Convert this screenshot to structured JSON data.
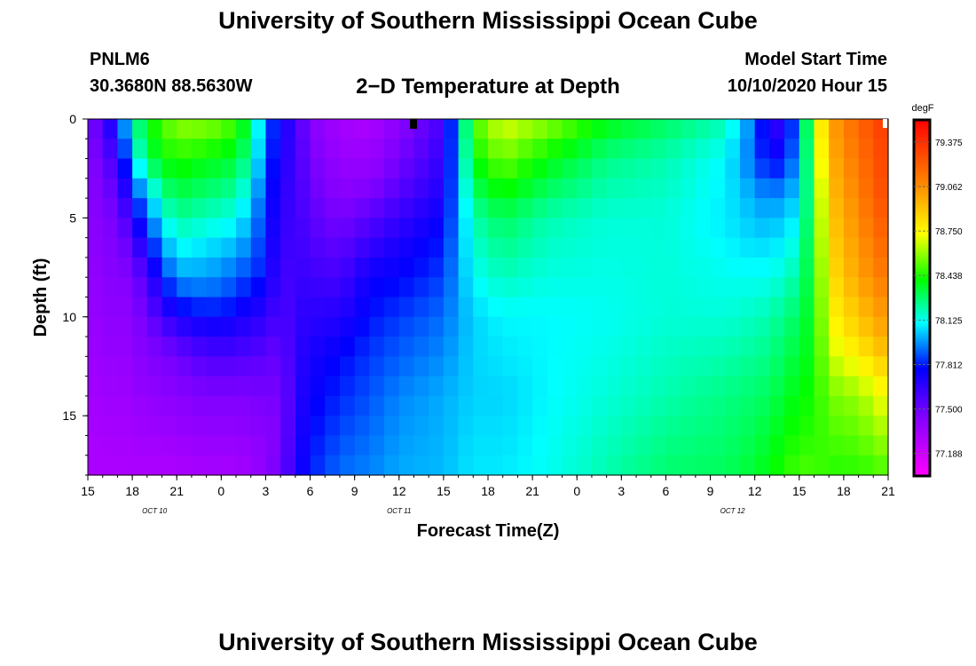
{
  "header": {
    "title": "University of Southern Mississippi Ocean Cube",
    "station": "PNLM6",
    "coords": "30.3680N 88.5630W",
    "subtitle": "2−D Temperature at Depth",
    "model_start_label": "Model Start Time",
    "model_start_value": "10/10/2020 Hour 15"
  },
  "footer": {
    "title": "University of Southern Mississippi Ocean Cube"
  },
  "chart_data": {
    "type": "heatmap",
    "xlabel": "Forecast Time(Z)",
    "ylabel": "Depth (ft)",
    "x_tick_labels": [
      "15",
      "18",
      "21",
      "0",
      "3",
      "6",
      "9",
      "12",
      "15",
      "18",
      "21",
      "0",
      "3",
      "6",
      "9",
      "12",
      "15",
      "18",
      "21"
    ],
    "x_range_hours": [
      0,
      54
    ],
    "day_labels": [
      {
        "text": "OCT  10",
        "hour": 4.5
      },
      {
        "text": "OCT  11",
        "hour": 21
      },
      {
        "text": "OCT  12",
        "hour": 43.5
      }
    ],
    "y_tick_labels": [
      "0",
      "5",
      "10",
      "15"
    ],
    "y_range": [
      0,
      18
    ],
    "y_reversed": true,
    "colorbar": {
      "unit": "degF",
      "min": 77.03,
      "max": 79.53,
      "tick_labels": [
        "79.375",
        "79.062",
        "78.750",
        "78.438",
        "78.125",
        "77.812",
        "77.500",
        "77.188"
      ],
      "tick_values": [
        79.375,
        79.062,
        78.75,
        78.438,
        78.125,
        77.812,
        77.5,
        77.188
      ]
    },
    "grid": {
      "x_step_hours": 1,
      "depths_ft": [
        0.5,
        1.5,
        2.5,
        3.5,
        4.5,
        5.5,
        6.5,
        7.5,
        8.5,
        9.5,
        10.5,
        11.5,
        12.5,
        13.5,
        14.5,
        15.5,
        16.5,
        17.5
      ]
    },
    "profiles": [
      {
        "hour": 0,
        "depth_ft": [
          0,
          18
        ],
        "temp": [
          77.4,
          77.3
        ]
      },
      {
        "hour": 1,
        "depth_ft": [
          0,
          3,
          18
        ],
        "temp": [
          77.62,
          77.5,
          77.3
        ]
      },
      {
        "hour": 2,
        "depth_ft": [
          0,
          1,
          3,
          5,
          18
        ],
        "temp": [
          77.8,
          77.7,
          77.55,
          77.45,
          77.3
        ]
      },
      {
        "hour": 3,
        "depth_ft": [
          0,
          2,
          4,
          6,
          8,
          18
        ],
        "temp": [
          78.2,
          78.05,
          77.8,
          77.6,
          77.45,
          77.3
        ]
      },
      {
        "hour": 4,
        "depth_ft": [
          0,
          2,
          4,
          6,
          8,
          10,
          18
        ],
        "temp": [
          78.4,
          78.3,
          78.0,
          77.8,
          77.6,
          77.5,
          77.3
        ]
      },
      {
        "hour": 5,
        "depth_ft": [
          0,
          2,
          4,
          6,
          8,
          10,
          11,
          13,
          18
        ],
        "temp": [
          78.5,
          78.4,
          78.2,
          78.0,
          77.8,
          77.62,
          77.5,
          77.42,
          77.3
        ]
      },
      {
        "hour": 6,
        "depth_ft": [
          0,
          2,
          4,
          6,
          8,
          9,
          10,
          11,
          12,
          14,
          18
        ],
        "temp": [
          78.6,
          78.45,
          78.3,
          78.15,
          77.98,
          77.85,
          77.72,
          77.6,
          77.5,
          77.42,
          77.3
        ]
      },
      {
        "hour": 8,
        "depth_ft": [
          0,
          2,
          4,
          6,
          8,
          9,
          10,
          11,
          12,
          14,
          18
        ],
        "temp": [
          78.6,
          78.4,
          78.25,
          78.1,
          77.98,
          77.9,
          77.78,
          77.68,
          77.58,
          77.45,
          77.32
        ]
      },
      {
        "hour": 10,
        "depth_ft": [
          0,
          2,
          4,
          6,
          8,
          9,
          10,
          11,
          12,
          14,
          18
        ],
        "temp": [
          78.5,
          78.35,
          78.2,
          78.05,
          77.9,
          77.85,
          77.75,
          77.68,
          77.58,
          77.45,
          77.32
        ]
      },
      {
        "hour": 11,
        "depth_ft": [
          0,
          2,
          4,
          6,
          8,
          9,
          10,
          11,
          12,
          14,
          18
        ],
        "temp": [
          78.3,
          78.2,
          78.05,
          77.95,
          77.85,
          77.75,
          77.68,
          77.62,
          77.55,
          77.45,
          77.35
        ]
      },
      {
        "hour": 12,
        "depth_ft": [
          0,
          2,
          4,
          6,
          8,
          10,
          11,
          12,
          14,
          16,
          18
        ],
        "temp": [
          77.92,
          77.9,
          77.85,
          77.82,
          77.8,
          77.68,
          77.62,
          77.55,
          77.48,
          77.42,
          77.4
        ]
      },
      {
        "hour": 13,
        "depth_ft": [
          0,
          2,
          4,
          6,
          8,
          10,
          12,
          14,
          16,
          18
        ],
        "temp": [
          77.75,
          77.7,
          77.65,
          77.62,
          77.58,
          77.55,
          77.5,
          77.45,
          77.45,
          77.5
        ]
      },
      {
        "hour": 14,
        "depth_ft": [
          0,
          18
        ],
        "temp": [
          77.62,
          77.68
        ]
      },
      {
        "hour": 15,
        "depth_ft": [
          0,
          4,
          8,
          12,
          18
        ],
        "temp": [
          77.42,
          77.52,
          77.62,
          77.72,
          77.82
        ]
      },
      {
        "hour": 17,
        "depth_ft": [
          0,
          4,
          8,
          12,
          18
        ],
        "temp": [
          77.32,
          77.42,
          77.6,
          77.78,
          77.92
        ]
      },
      {
        "hour": 19,
        "depth_ft": [
          0,
          3,
          6,
          8,
          12,
          18
        ],
        "temp": [
          77.3,
          77.4,
          77.62,
          77.75,
          77.85,
          77.95
        ]
      },
      {
        "hour": 21,
        "depth_ft": [
          0,
          3,
          6,
          10,
          14,
          18
        ],
        "temp": [
          77.4,
          77.52,
          77.7,
          77.85,
          77.95,
          78.0
        ]
      },
      {
        "hour": 24,
        "depth_ft": [
          0,
          3,
          6,
          10,
          14,
          18
        ],
        "temp": [
          77.6,
          77.68,
          77.8,
          77.92,
          78.0,
          78.02
        ]
      },
      {
        "hour": 26,
        "depth_ft": [
          0,
          2,
          5,
          10,
          14,
          18
        ],
        "temp": [
          78.5,
          78.4,
          78.2,
          78.05,
          78.05,
          78.08
        ]
      },
      {
        "hour": 28,
        "depth_ft": [
          0,
          2,
          5,
          10,
          14,
          18
        ],
        "temp": [
          78.7,
          78.55,
          78.3,
          78.1,
          78.05,
          78.08
        ]
      },
      {
        "hour": 31,
        "depth_ft": [
          0,
          2,
          5,
          10,
          14,
          18
        ],
        "temp": [
          78.6,
          78.4,
          78.2,
          78.1,
          78.1,
          78.12
        ]
      },
      {
        "hour": 35,
        "depth_ft": [
          0,
          2,
          5,
          10,
          14,
          18
        ],
        "temp": [
          78.4,
          78.25,
          78.15,
          78.12,
          78.15,
          78.2
        ]
      },
      {
        "hour": 39,
        "depth_ft": [
          0,
          2,
          5,
          10,
          14,
          18
        ],
        "temp": [
          78.3,
          78.2,
          78.15,
          78.15,
          78.2,
          78.28
        ]
      },
      {
        "hour": 43,
        "depth_ft": [
          0,
          2,
          5,
          10,
          14,
          18
        ],
        "temp": [
          78.2,
          78.1,
          78.08,
          78.15,
          78.25,
          78.3
        ]
      },
      {
        "hour": 45,
        "depth_ft": [
          0,
          2,
          4,
          6,
          10,
          14,
          18
        ],
        "temp": [
          77.92,
          77.9,
          78.0,
          78.05,
          78.18,
          78.28,
          78.35
        ]
      },
      {
        "hour": 46,
        "depth_ft": [
          0,
          2,
          4,
          6,
          10,
          14,
          18
        ],
        "temp": [
          77.65,
          77.75,
          77.95,
          78.05,
          78.2,
          78.3,
          78.4
        ]
      },
      {
        "hour": 47,
        "depth_ft": [
          0,
          2,
          4,
          6,
          10,
          14,
          18
        ],
        "temp": [
          77.65,
          77.8,
          78.0,
          78.08,
          78.25,
          78.35,
          78.45
        ]
      },
      {
        "hour": 48,
        "depth_ft": [
          0,
          2,
          4,
          6,
          10,
          14,
          18
        ],
        "temp": [
          78.0,
          78.0,
          78.05,
          78.15,
          78.3,
          78.4,
          78.5
        ]
      },
      {
        "hour": 49,
        "depth_ft": [
          0,
          4,
          8,
          12,
          16,
          18
        ],
        "temp": [
          78.6,
          78.45,
          78.4,
          78.4,
          78.45,
          78.5
        ]
      },
      {
        "hour": 50,
        "depth_ft": [
          0,
          4,
          8,
          11,
          14,
          18
        ],
        "temp": [
          79.0,
          78.9,
          78.8,
          78.7,
          78.55,
          78.45
        ]
      },
      {
        "hour": 52,
        "depth_ft": [
          0,
          4,
          8,
          11,
          14,
          18
        ],
        "temp": [
          79.2,
          79.1,
          79.0,
          78.85,
          78.6,
          78.45
        ]
      },
      {
        "hour": 54,
        "depth_ft": [
          0,
          4,
          8,
          11,
          14,
          18
        ],
        "temp": [
          79.35,
          79.3,
          79.15,
          79.0,
          78.75,
          78.5
        ]
      }
    ]
  }
}
